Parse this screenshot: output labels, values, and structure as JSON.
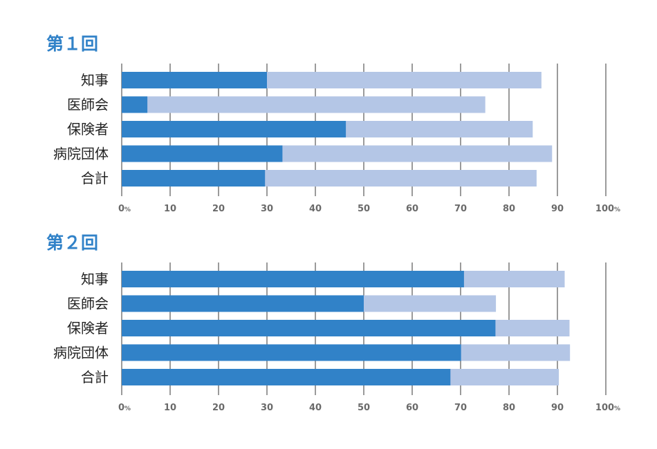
{
  "chart_data": [
    {
      "type": "bar",
      "orientation": "horizontal",
      "stacked": false,
      "title": "第１回",
      "categories": [
        "知事",
        "医師会",
        "保険者",
        "病院団体",
        "合計"
      ],
      "series": [
        {
          "values": [
            30,
            5.3,
            46.3,
            33.2,
            29.6
          ],
          "color": "#3182c8"
        },
        {
          "values": [
            86.7,
            75.1,
            84.9,
            88.9,
            85.7
          ],
          "color": "#b4c6e6"
        }
      ],
      "xlim": [
        0,
        100
      ],
      "x_ticks": [
        "0",
        "10",
        "20",
        "30",
        "40",
        "50",
        "60",
        "70",
        "80",
        "90",
        "100"
      ],
      "x_unit": "%",
      "grid": "vertical"
    },
    {
      "type": "bar",
      "orientation": "horizontal",
      "stacked": false,
      "title": "第２回",
      "categories": [
        "知事",
        "医師会",
        "保険者",
        "病院団体",
        "合計"
      ],
      "series": [
        {
          "values": [
            70.7,
            50,
            77.2,
            70.1,
            67.9
          ],
          "color": "#3182c8"
        },
        {
          "values": [
            91.5,
            77.3,
            92.5,
            92.6,
            90.3
          ],
          "color": "#b4c6e6"
        }
      ],
      "xlim": [
        0,
        100
      ],
      "x_ticks": [
        "0",
        "10",
        "20",
        "30",
        "40",
        "50",
        "60",
        "70",
        "80",
        "90",
        "100"
      ],
      "x_unit": "%",
      "grid": "vertical"
    }
  ],
  "colors": {
    "title": "#3182c8",
    "grid": "#9a9a9a",
    "axis_text": "#6a6a6a"
  }
}
